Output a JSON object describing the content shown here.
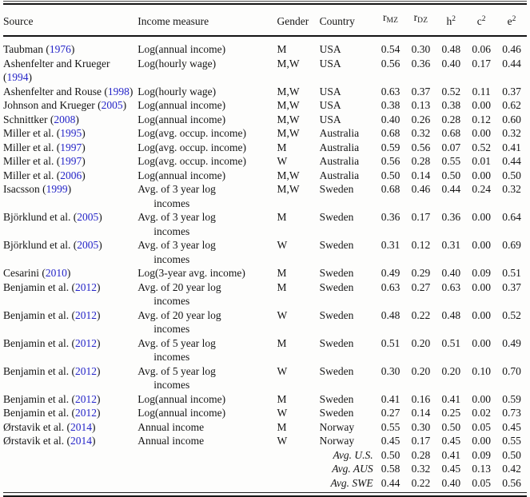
{
  "colors": {
    "link_blue": "#2424c8",
    "text": "#151515",
    "rule": "#161616"
  },
  "table": {
    "punctuation": {
      "open": "(",
      "close": ")"
    },
    "headers": {
      "source": "Source",
      "measure": "Income measure",
      "gender": "Gender",
      "country": "Country",
      "r_mz": {
        "base": "r",
        "sub": "MZ"
      },
      "r_dz": {
        "base": "r",
        "sub": "DZ"
      },
      "h2": {
        "base": "h",
        "sup": "2"
      },
      "c2": {
        "base": "c",
        "sup": "2"
      },
      "e2": {
        "base": "e",
        "sup": "2"
      }
    },
    "rows": [
      {
        "source_name": "Taubman ",
        "source_year": "1976",
        "measure_lines": [
          "Log(annual income)"
        ],
        "gender": "M",
        "country": "USA",
        "r_mz": "0.54",
        "r_dz": "0.30",
        "h2": "0.48",
        "c2": "0.06",
        "e2": "0.46"
      },
      {
        "source_name": "Ashenfelter and Krueger ",
        "source_year": "1994",
        "measure_lines": [
          "Log(hourly wage)"
        ],
        "gender": "M,W",
        "country": "USA",
        "r_mz": "0.56",
        "r_dz": "0.36",
        "h2": "0.40",
        "c2": "0.17",
        "e2": "0.44"
      },
      {
        "source_name": "Ashenfelter and Rouse ",
        "source_year": "1998",
        "measure_lines": [
          "Log(hourly wage)"
        ],
        "gender": "M,W",
        "country": "USA",
        "r_mz": "0.63",
        "r_dz": "0.37",
        "h2": "0.52",
        "c2": "0.11",
        "e2": "0.37"
      },
      {
        "source_name": "Johnson and Krueger ",
        "source_year": "2005",
        "measure_lines": [
          "Log(annual income)"
        ],
        "gender": "M,W",
        "country": "USA",
        "r_mz": "0.38",
        "r_dz": "0.13",
        "h2": "0.38",
        "c2": "0.00",
        "e2": "0.62"
      },
      {
        "source_name": "Schnittker ",
        "source_year": "2008",
        "measure_lines": [
          "Log(annual income)"
        ],
        "gender": "M,W",
        "country": "USA",
        "r_mz": "0.40",
        "r_dz": "0.26",
        "h2": "0.28",
        "c2": "0.12",
        "e2": "0.60"
      },
      {
        "source_name": "Miller et al. ",
        "source_year": "1995",
        "measure_lines": [
          "Log(avg. occup. income)"
        ],
        "gender": "M,W",
        "country": "Australia",
        "r_mz": "0.68",
        "r_dz": "0.32",
        "h2": "0.68",
        "c2": "0.00",
        "e2": "0.32"
      },
      {
        "source_name": "Miller et al. ",
        "source_year": "1997",
        "measure_lines": [
          "Log(avg. occup. income)"
        ],
        "gender": "M",
        "country": "Australia",
        "r_mz": "0.59",
        "r_dz": "0.56",
        "h2": "0.07",
        "c2": "0.52",
        "e2": "0.41"
      },
      {
        "source_name": "Miller et al. ",
        "source_year": "1997",
        "measure_lines": [
          "Log(avg. occup. income)"
        ],
        "gender": "W",
        "country": "Australia",
        "r_mz": "0.56",
        "r_dz": "0.28",
        "h2": "0.55",
        "c2": "0.01",
        "e2": "0.44"
      },
      {
        "source_name": "Miller et al. ",
        "source_year": "2006",
        "measure_lines": [
          "Log(annual income)"
        ],
        "gender": "M,W",
        "country": "Australia",
        "r_mz": "0.50",
        "r_dz": "0.14",
        "h2": "0.50",
        "c2": "0.00",
        "e2": "0.50"
      },
      {
        "source_name": "Isacsson ",
        "source_year": "1999",
        "measure_lines": [
          "Avg. of 3 year log",
          "incomes"
        ],
        "gender": "M,W",
        "country": "Sweden",
        "r_mz": "0.68",
        "r_dz": "0.46",
        "h2": "0.44",
        "c2": "0.24",
        "e2": "0.32"
      },
      {
        "source_name": "Björklund et al. ",
        "source_year": "2005",
        "measure_lines": [
          "Avg. of 3 year log",
          "incomes"
        ],
        "gender": "M",
        "country": "Sweden",
        "r_mz": "0.36",
        "r_dz": "0.17",
        "h2": "0.36",
        "c2": "0.00",
        "e2": "0.64"
      },
      {
        "source_name": "Björklund et al. ",
        "source_year": "2005",
        "measure_lines": [
          "Avg. of 3 year log",
          "incomes"
        ],
        "gender": "W",
        "country": "Sweden",
        "r_mz": "0.31",
        "r_dz": "0.12",
        "h2": "0.31",
        "c2": "0.00",
        "e2": "0.69"
      },
      {
        "source_name": "Cesarini ",
        "source_year": "2010",
        "measure_lines": [
          "Log(3-year avg. income)"
        ],
        "gender": "M",
        "country": "Sweden",
        "r_mz": "0.49",
        "r_dz": "0.29",
        "h2": "0.40",
        "c2": "0.09",
        "e2": "0.51"
      },
      {
        "source_name": "Benjamin et al. ",
        "source_year": "2012",
        "measure_lines": [
          "Avg. of 20 year log",
          "incomes"
        ],
        "gender": "M",
        "country": "Sweden",
        "r_mz": "0.63",
        "r_dz": "0.27",
        "h2": "0.63",
        "c2": "0.00",
        "e2": "0.37"
      },
      {
        "source_name": "Benjamin et al. ",
        "source_year": "2012",
        "measure_lines": [
          "Avg. of 20 year log",
          "incomes"
        ],
        "gender": "W",
        "country": "Sweden",
        "r_mz": "0.48",
        "r_dz": "0.22",
        "h2": "0.48",
        "c2": "0.00",
        "e2": "0.52"
      },
      {
        "source_name": "Benjamin et al. ",
        "source_year": "2012",
        "measure_lines": [
          "Avg. of 5 year log",
          "incomes"
        ],
        "gender": "M",
        "country": "Sweden",
        "r_mz": "0.51",
        "r_dz": "0.20",
        "h2": "0.51",
        "c2": "0.00",
        "e2": "0.49"
      },
      {
        "source_name": "Benjamin et al. ",
        "source_year": "2012",
        "measure_lines": [
          "Avg. of 5 year log",
          "incomes"
        ],
        "gender": "W",
        "country": "Sweden",
        "r_mz": "0.30",
        "r_dz": "0.20",
        "h2": "0.20",
        "c2": "0.10",
        "e2": "0.70"
      },
      {
        "source_name": "Benjamin et al. ",
        "source_year": "2012",
        "measure_lines": [
          "Log(annual income)"
        ],
        "gender": "M",
        "country": "Sweden",
        "r_mz": "0.41",
        "r_dz": "0.16",
        "h2": "0.41",
        "c2": "0.00",
        "e2": "0.59"
      },
      {
        "source_name": "Benjamin et al. ",
        "source_year": "2012",
        "measure_lines": [
          "Log(annual income)"
        ],
        "gender": "W",
        "country": "Sweden",
        "r_mz": "0.27",
        "r_dz": "0.14",
        "h2": "0.25",
        "c2": "0.02",
        "e2": "0.73"
      },
      {
        "source_name": "Ørstavik et al. ",
        "source_year": "2014",
        "measure_lines": [
          "Annual income"
        ],
        "gender": "M",
        "country": "Norway",
        "r_mz": "0.55",
        "r_dz": "0.30",
        "h2": "0.50",
        "c2": "0.05",
        "e2": "0.45"
      },
      {
        "source_name": "Ørstavik et al. ",
        "source_year": "2014",
        "measure_lines": [
          "Annual income"
        ],
        "gender": "W",
        "country": "Norway",
        "r_mz": "0.45",
        "r_dz": "0.17",
        "h2": "0.45",
        "c2": "0.00",
        "e2": "0.55"
      }
    ],
    "summary_rows": [
      {
        "label": "Avg. U.S.",
        "r_mz": "0.50",
        "r_dz": "0.28",
        "h2": "0.41",
        "c2": "0.09",
        "e2": "0.50"
      },
      {
        "label": "Avg. AUS",
        "r_mz": "0.58",
        "r_dz": "0.32",
        "h2": "0.45",
        "c2": "0.13",
        "e2": "0.42"
      },
      {
        "label": "Avg. SWE",
        "r_mz": "0.44",
        "r_dz": "0.22",
        "h2": "0.40",
        "c2": "0.05",
        "e2": "0.56"
      }
    ]
  }
}
